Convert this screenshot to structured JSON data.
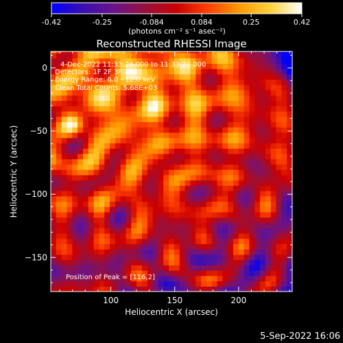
{
  "chart_data": {
    "type": "heatmap",
    "title": "Reconstructed RHESSI Image",
    "xlabel": "Heliocentric X (arcsec)",
    "ylabel": "Heliocentric Y (arcsec)",
    "xlim": [
      53,
      242
    ],
    "ylim": [
      -177,
      13
    ],
    "x_ticks": [
      100,
      150,
      200
    ],
    "y_ticks": [
      0,
      -50,
      -100,
      -150
    ],
    "colorbar": {
      "label": "(photons cm⁻² s⁻¹ asec⁻²)",
      "min": -0.42,
      "max": 0.42,
      "ticks": [
        -0.42,
        -0.25,
        -0.084,
        0.084,
        0.25,
        0.42
      ],
      "tick_labels": [
        "-0.42",
        "-0.25",
        "-0.084",
        "0.084",
        "0.25",
        "0.42"
      ],
      "colormap": [
        "#0000ff",
        "#3a0fb0",
        "#6a138a",
        "#98103c",
        "#cc0000",
        "#ff4000",
        "#ff9a00",
        "#ffd23a",
        "#ffffff"
      ]
    },
    "peak": {
      "x": 116,
      "y": 2,
      "value": 0.42
    },
    "annotations": [
      "4-Dec-2022 11:33:24.000 to 11:33:20.000",
      "Detectors: 1F 2F 3F 4F",
      "Energy Range: 6.0 - 12.0 keV",
      "Clean    Total Counts: 5.68E+03",
      "Position of Peak = [116,2]"
    ],
    "timestamp": "5-Sep-2022 16:06"
  }
}
